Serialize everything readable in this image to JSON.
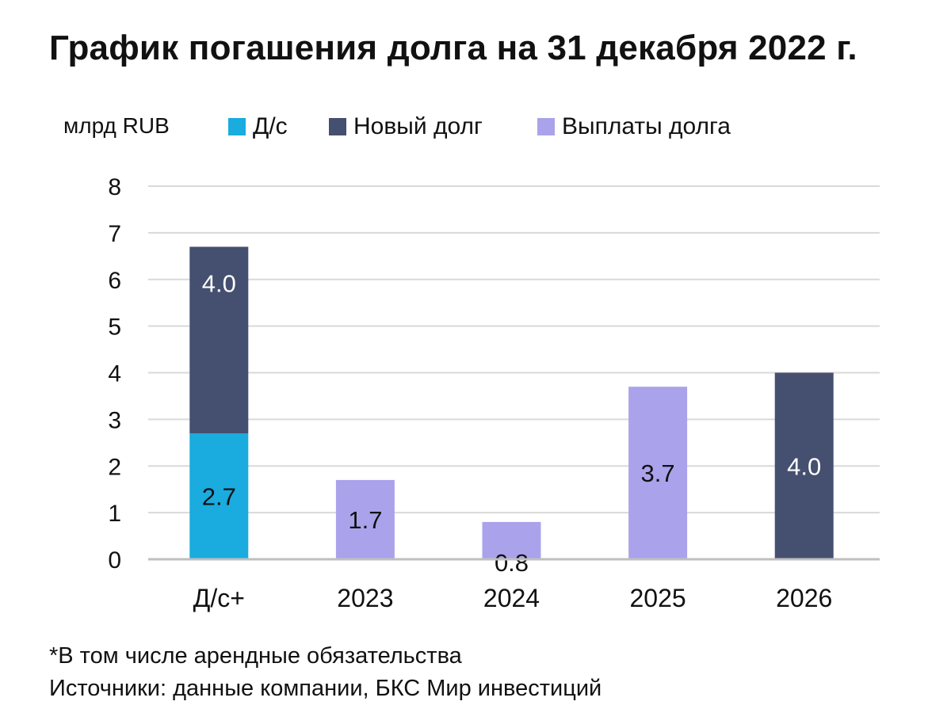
{
  "title": "График погашения долга на 31 декабря 2022 г.",
  "footnote": "*В том числе арендные обязательства",
  "source": "Источники: данные компании, БКС Мир инвестиций",
  "colors": {
    "cash": "#1aabdf",
    "new_debt": "#454f6f",
    "payments": "#aaa3eb",
    "grid": "#d9d9d9",
    "axis": "#bfbfbf"
  },
  "chart_data": {
    "type": "bar",
    "stacked": true,
    "title": "График погашения долга на 31 декабря 2022 г.",
    "ylabel": "млрд RUB",
    "xlabel": "",
    "ylim": [
      0,
      8
    ],
    "yticks": [
      "0",
      "1",
      "2",
      "3",
      "4",
      "5",
      "6",
      "7",
      "8"
    ],
    "grid": true,
    "legend_position": "top",
    "categories": [
      "Д/с+",
      "2023",
      "2024",
      "2025",
      "2026"
    ],
    "series": [
      {
        "name": "Д/с",
        "key": "cash",
        "values": [
          2.7,
          0,
          0,
          0,
          0
        ],
        "labels": [
          "2.7",
          "",
          "",
          "",
          ""
        ],
        "label_color": "#111111"
      },
      {
        "name": "Новый долг",
        "key": "new_debt",
        "values": [
          4.0,
          0,
          0,
          0,
          4.0
        ],
        "labels": [
          "4.0",
          "",
          "",
          "",
          "4.0"
        ],
        "label_color": "#ffffff"
      },
      {
        "name": "Выплаты долга",
        "key": "payments",
        "values": [
          0,
          1.7,
          0.8,
          3.7,
          0
        ],
        "labels": [
          "",
          "1.7",
          "0.8",
          "3.7",
          ""
        ],
        "label_color": "#111111"
      }
    ]
  }
}
